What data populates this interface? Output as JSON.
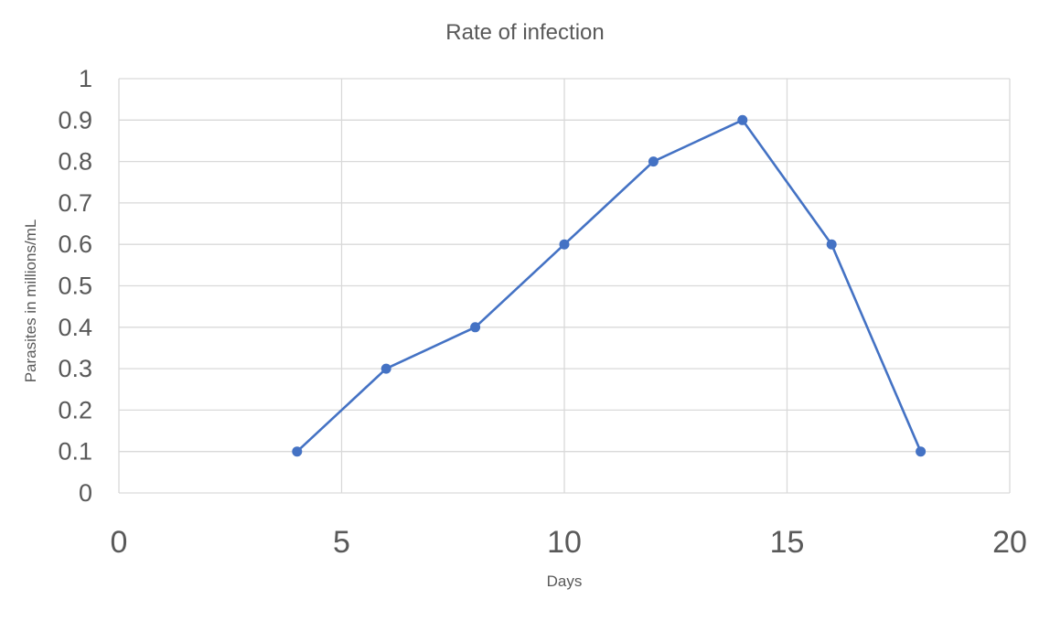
{
  "chart_data": {
    "type": "scatter",
    "title": "Rate of infection",
    "xlabel": "Days",
    "ylabel": "Parasites in millions/mL",
    "xlim": [
      0,
      20
    ],
    "ylim": [
      0,
      1
    ],
    "xticks": [
      0,
      5,
      10,
      15,
      20
    ],
    "yticks": [
      0,
      0.1,
      0.2,
      0.3,
      0.4,
      0.5,
      0.6,
      0.7,
      0.8,
      0.9,
      1
    ],
    "xtick_labels": [
      "0",
      "5",
      "10",
      "15",
      "20"
    ],
    "ytick_labels": [
      "0",
      "0.1",
      "0.2",
      "0.3",
      "0.4",
      "0.5",
      "0.6",
      "0.7",
      "0.8",
      "0.9",
      "1"
    ],
    "grid": true,
    "legend": "none",
    "series": [
      {
        "color": "#4472C4",
        "marker": "circle",
        "line": "straight",
        "x": [
          4,
          6,
          8,
          10,
          12,
          14,
          16,
          18
        ],
        "y": [
          0.1,
          0.3,
          0.4,
          0.6,
          0.8,
          0.9,
          0.6,
          0.1
        ]
      }
    ],
    "colors": {
      "grid": "#d9d9d9",
      "axis": "#d9d9d9",
      "text": "#595959"
    }
  }
}
